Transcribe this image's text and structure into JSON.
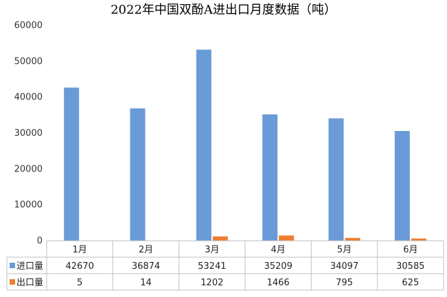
{
  "chart_data": {
    "type": "bar",
    "title": "2022年中国双酚A进出口月度数据（吨）",
    "categories": [
      "1月",
      "2月",
      "3月",
      "4月",
      "5月",
      "6月"
    ],
    "series": [
      {
        "name": "进口量",
        "values": [
          42670,
          36874,
          53241,
          35209,
          34097,
          30585
        ],
        "color": "#6A9BD8"
      },
      {
        "name": "出口量",
        "values": [
          5,
          14,
          1202,
          1466,
          795,
          625
        ],
        "color": "#ED7D31"
      }
    ],
    "ylim": [
      0,
      60000
    ],
    "yticks": [
      0,
      10000,
      20000,
      30000,
      40000,
      50000,
      60000
    ],
    "grid": false,
    "legend": "data-table"
  }
}
